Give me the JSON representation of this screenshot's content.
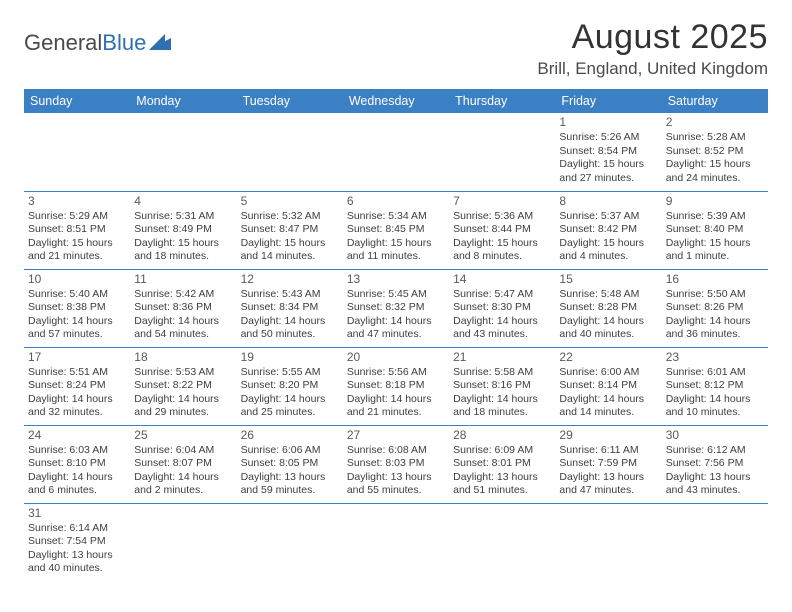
{
  "logo": {
    "text1": "General",
    "text2": "Blue"
  },
  "title": "August 2025",
  "location": "Brill, England, United Kingdom",
  "colors": {
    "header_bg": "#3b7fc4",
    "header_text": "#ffffff",
    "border": "#3b7fc4",
    "body_text": "#3e3e3e",
    "title_text": "#333333"
  },
  "day_headers": [
    "Sunday",
    "Monday",
    "Tuesday",
    "Wednesday",
    "Thursday",
    "Friday",
    "Saturday"
  ],
  "weeks": [
    [
      {
        "n": "",
        "sr": "",
        "ss": "",
        "d": ""
      },
      {
        "n": "",
        "sr": "",
        "ss": "",
        "d": ""
      },
      {
        "n": "",
        "sr": "",
        "ss": "",
        "d": ""
      },
      {
        "n": "",
        "sr": "",
        "ss": "",
        "d": ""
      },
      {
        "n": "",
        "sr": "",
        "ss": "",
        "d": ""
      },
      {
        "n": "1",
        "sr": "Sunrise: 5:26 AM",
        "ss": "Sunset: 8:54 PM",
        "d": "Daylight: 15 hours and 27 minutes."
      },
      {
        "n": "2",
        "sr": "Sunrise: 5:28 AM",
        "ss": "Sunset: 8:52 PM",
        "d": "Daylight: 15 hours and 24 minutes."
      }
    ],
    [
      {
        "n": "3",
        "sr": "Sunrise: 5:29 AM",
        "ss": "Sunset: 8:51 PM",
        "d": "Daylight: 15 hours and 21 minutes."
      },
      {
        "n": "4",
        "sr": "Sunrise: 5:31 AM",
        "ss": "Sunset: 8:49 PM",
        "d": "Daylight: 15 hours and 18 minutes."
      },
      {
        "n": "5",
        "sr": "Sunrise: 5:32 AM",
        "ss": "Sunset: 8:47 PM",
        "d": "Daylight: 15 hours and 14 minutes."
      },
      {
        "n": "6",
        "sr": "Sunrise: 5:34 AM",
        "ss": "Sunset: 8:45 PM",
        "d": "Daylight: 15 hours and 11 minutes."
      },
      {
        "n": "7",
        "sr": "Sunrise: 5:36 AM",
        "ss": "Sunset: 8:44 PM",
        "d": "Daylight: 15 hours and 8 minutes."
      },
      {
        "n": "8",
        "sr": "Sunrise: 5:37 AM",
        "ss": "Sunset: 8:42 PM",
        "d": "Daylight: 15 hours and 4 minutes."
      },
      {
        "n": "9",
        "sr": "Sunrise: 5:39 AM",
        "ss": "Sunset: 8:40 PM",
        "d": "Daylight: 15 hours and 1 minute."
      }
    ],
    [
      {
        "n": "10",
        "sr": "Sunrise: 5:40 AM",
        "ss": "Sunset: 8:38 PM",
        "d": "Daylight: 14 hours and 57 minutes."
      },
      {
        "n": "11",
        "sr": "Sunrise: 5:42 AM",
        "ss": "Sunset: 8:36 PM",
        "d": "Daylight: 14 hours and 54 minutes."
      },
      {
        "n": "12",
        "sr": "Sunrise: 5:43 AM",
        "ss": "Sunset: 8:34 PM",
        "d": "Daylight: 14 hours and 50 minutes."
      },
      {
        "n": "13",
        "sr": "Sunrise: 5:45 AM",
        "ss": "Sunset: 8:32 PM",
        "d": "Daylight: 14 hours and 47 minutes."
      },
      {
        "n": "14",
        "sr": "Sunrise: 5:47 AM",
        "ss": "Sunset: 8:30 PM",
        "d": "Daylight: 14 hours and 43 minutes."
      },
      {
        "n": "15",
        "sr": "Sunrise: 5:48 AM",
        "ss": "Sunset: 8:28 PM",
        "d": "Daylight: 14 hours and 40 minutes."
      },
      {
        "n": "16",
        "sr": "Sunrise: 5:50 AM",
        "ss": "Sunset: 8:26 PM",
        "d": "Daylight: 14 hours and 36 minutes."
      }
    ],
    [
      {
        "n": "17",
        "sr": "Sunrise: 5:51 AM",
        "ss": "Sunset: 8:24 PM",
        "d": "Daylight: 14 hours and 32 minutes."
      },
      {
        "n": "18",
        "sr": "Sunrise: 5:53 AM",
        "ss": "Sunset: 8:22 PM",
        "d": "Daylight: 14 hours and 29 minutes."
      },
      {
        "n": "19",
        "sr": "Sunrise: 5:55 AM",
        "ss": "Sunset: 8:20 PM",
        "d": "Daylight: 14 hours and 25 minutes."
      },
      {
        "n": "20",
        "sr": "Sunrise: 5:56 AM",
        "ss": "Sunset: 8:18 PM",
        "d": "Daylight: 14 hours and 21 minutes."
      },
      {
        "n": "21",
        "sr": "Sunrise: 5:58 AM",
        "ss": "Sunset: 8:16 PM",
        "d": "Daylight: 14 hours and 18 minutes."
      },
      {
        "n": "22",
        "sr": "Sunrise: 6:00 AM",
        "ss": "Sunset: 8:14 PM",
        "d": "Daylight: 14 hours and 14 minutes."
      },
      {
        "n": "23",
        "sr": "Sunrise: 6:01 AM",
        "ss": "Sunset: 8:12 PM",
        "d": "Daylight: 14 hours and 10 minutes."
      }
    ],
    [
      {
        "n": "24",
        "sr": "Sunrise: 6:03 AM",
        "ss": "Sunset: 8:10 PM",
        "d": "Daylight: 14 hours and 6 minutes."
      },
      {
        "n": "25",
        "sr": "Sunrise: 6:04 AM",
        "ss": "Sunset: 8:07 PM",
        "d": "Daylight: 14 hours and 2 minutes."
      },
      {
        "n": "26",
        "sr": "Sunrise: 6:06 AM",
        "ss": "Sunset: 8:05 PM",
        "d": "Daylight: 13 hours and 59 minutes."
      },
      {
        "n": "27",
        "sr": "Sunrise: 6:08 AM",
        "ss": "Sunset: 8:03 PM",
        "d": "Daylight: 13 hours and 55 minutes."
      },
      {
        "n": "28",
        "sr": "Sunrise: 6:09 AM",
        "ss": "Sunset: 8:01 PM",
        "d": "Daylight: 13 hours and 51 minutes."
      },
      {
        "n": "29",
        "sr": "Sunrise: 6:11 AM",
        "ss": "Sunset: 7:59 PM",
        "d": "Daylight: 13 hours and 47 minutes."
      },
      {
        "n": "30",
        "sr": "Sunrise: 6:12 AM",
        "ss": "Sunset: 7:56 PM",
        "d": "Daylight: 13 hours and 43 minutes."
      }
    ],
    [
      {
        "n": "31",
        "sr": "Sunrise: 6:14 AM",
        "ss": "Sunset: 7:54 PM",
        "d": "Daylight: 13 hours and 40 minutes."
      },
      {
        "n": "",
        "sr": "",
        "ss": "",
        "d": ""
      },
      {
        "n": "",
        "sr": "",
        "ss": "",
        "d": ""
      },
      {
        "n": "",
        "sr": "",
        "ss": "",
        "d": ""
      },
      {
        "n": "",
        "sr": "",
        "ss": "",
        "d": ""
      },
      {
        "n": "",
        "sr": "",
        "ss": "",
        "d": ""
      },
      {
        "n": "",
        "sr": "",
        "ss": "",
        "d": ""
      }
    ]
  ]
}
